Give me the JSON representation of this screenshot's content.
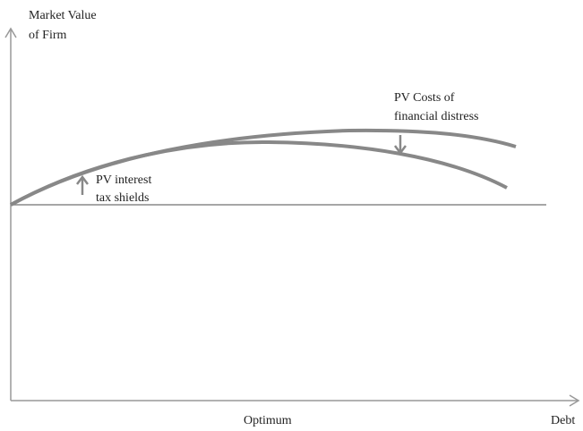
{
  "y_axis_label": [
    "Market Value",
    "of Firm"
  ],
  "x_axis_label": "Debt",
  "optimum_label": "Optimum",
  "distress_label": [
    "PV Costs of",
    "financial distress"
  ],
  "tax_shield_label": [
    "PV interest",
    "tax shields"
  ]
}
